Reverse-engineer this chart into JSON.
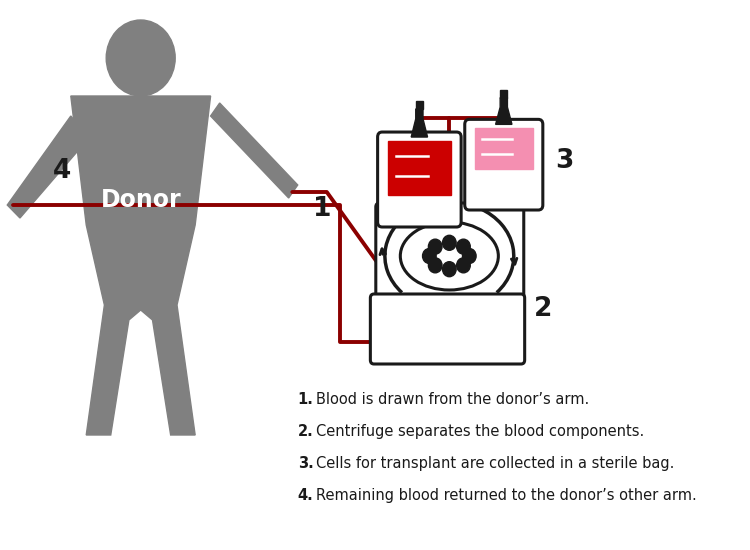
{
  "bg_color": "#ffffff",
  "donor_color": "#808080",
  "line_color": "#8B0000",
  "black": "#1a1a1a",
  "red_bag_fill": "#cc0000",
  "pink_bag_fill": "#f48fb1",
  "legend_items": [
    {
      "num": "1.",
      "text": "Blood is drawn from the donor’s arm."
    },
    {
      "num": "2.",
      "text": "Centrifuge separates the blood components."
    },
    {
      "num": "3.",
      "text": "Cells for transplant are collected in a sterile bag."
    },
    {
      "num": "4.",
      "text": "Remaining blood returned to the donor’s other arm."
    }
  ],
  "donor_label": "Donor",
  "figure_width": 7.5,
  "figure_height": 5.5
}
